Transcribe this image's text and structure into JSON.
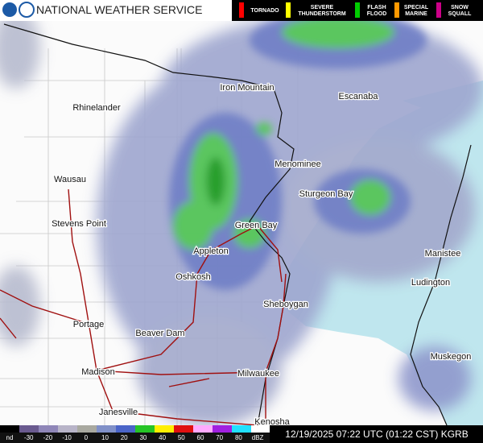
{
  "header": {
    "title": "NATIONAL WEATHER SERVICE"
  },
  "warnings": [
    [
      "TORNADO"
    ],
    [
      "SEVERE",
      "THUNDERSTORM"
    ],
    [
      "FLASH",
      "FLOOD"
    ],
    [
      "SPECIAL",
      "MARINE"
    ],
    [
      "SNOW",
      "SQUALL"
    ]
  ],
  "cities": [
    "Iron Mountain",
    "Escanaba",
    "Rhinelander",
    "Menominee",
    "Wausau",
    "Sturgeon Bay",
    "Stevens Point",
    "Green Bay",
    "Appleton",
    "Manistee",
    "Oshkosh",
    "Ludington",
    "Sheboygan",
    "Portage",
    "Beaver Dam",
    "Muskegon",
    "Madison",
    "Milwaukee",
    "Janesville",
    "Kenosha"
  ],
  "scale_labels": [
    "nd",
    "-30",
    "-20",
    "-10",
    "0",
    "10",
    "20",
    "30",
    "40",
    "50",
    "60",
    "70",
    "80",
    "dBZ"
  ],
  "footer": {
    "timestamp": "12/19/2025 07:22 UTC (01:22 CST) KGRB"
  }
}
